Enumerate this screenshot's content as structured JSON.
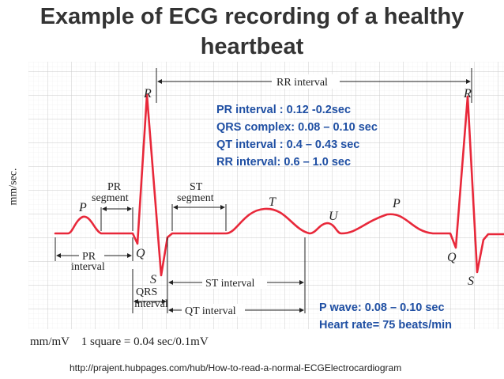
{
  "title_line1": "Example of ECG recording of a healthy",
  "title_line2": "heartbeat",
  "y_axis_label": "mm/sec.",
  "scale_text": "mm/mV    1 square = 0.04 sec/0.1mV",
  "source_url": "http://prajent.hubpages.com/hub/How-to-read-a-normal-ECGElectrocardiogram",
  "intervals_box": [
    "PR interval : 0.12 -0.2sec",
    "QRS complex: 0.08 – 0.10 sec",
    "QT interval : 0.4 – 0.43 sec",
    "RR interval: 0.6 – 1.0 sec"
  ],
  "wave_box": [
    "P wave: 0.08 – 0.10 sec",
    "Heart rate= 75 beats/min"
  ],
  "waveform_labels": {
    "R1": "R",
    "R2": "R",
    "P1": "P",
    "P2": "P",
    "Q1": "Q",
    "Q2": "Q",
    "S1": "S",
    "S2": "S",
    "T": "T",
    "U": "U"
  },
  "interval_labels": {
    "rr_interval": "RR interval",
    "pr_segment_1": "PR",
    "pr_segment_2": "segment",
    "st_segment_1": "ST",
    "st_segment_2": "segment",
    "pr_interval_1": "PR",
    "pr_interval_2": "interval",
    "st_interval": "ST interval",
    "qrs_interval_1": "QRS",
    "qrs_interval_2": "interval",
    "qt_interval": "QT interval"
  },
  "colors": {
    "title": "#333333",
    "trace": "#e8283a",
    "grid_major": "#c9c9c9",
    "grid_minor": "#ececec",
    "annotation_text": "#1f4fa3"
  }
}
